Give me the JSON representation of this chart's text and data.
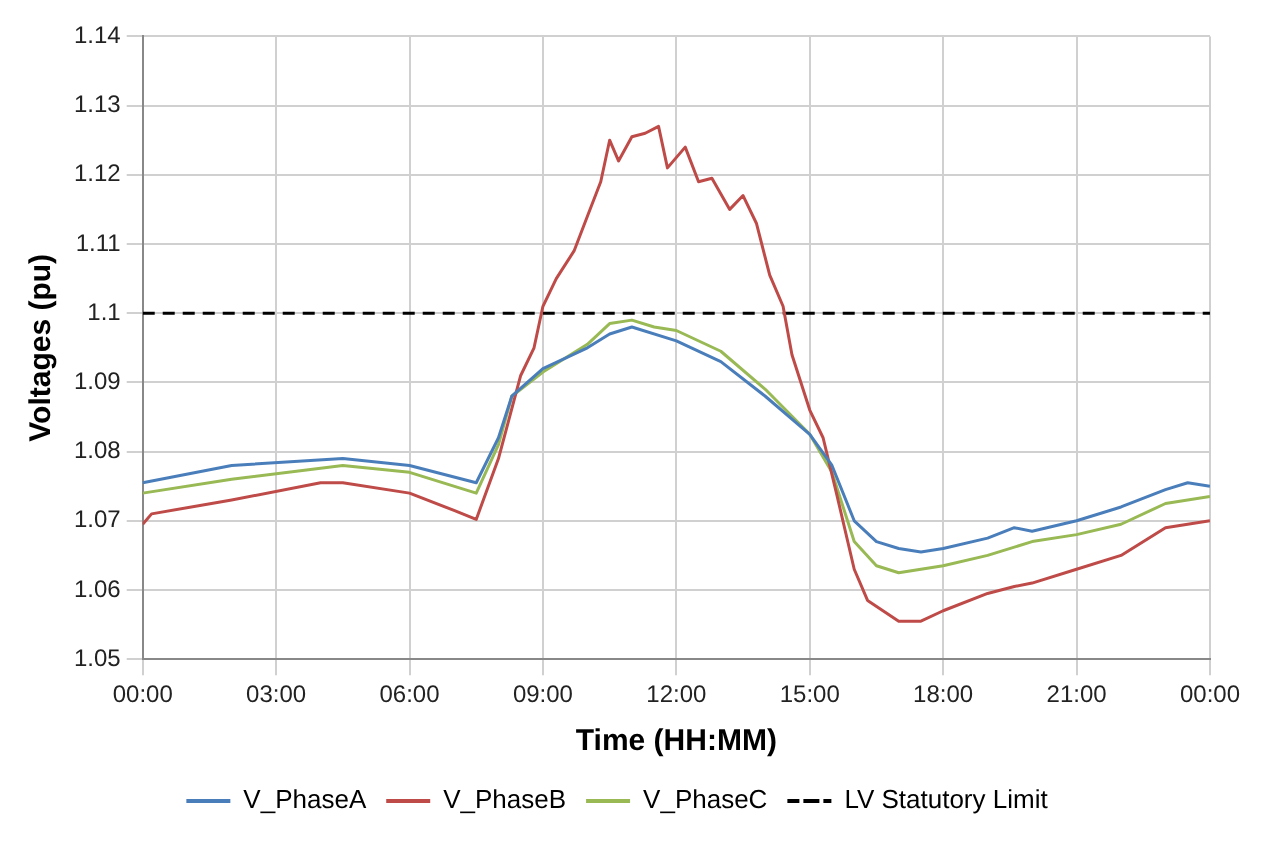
{
  "chart_data": {
    "type": "line",
    "xlabel": "Time (HH:MM)",
    "ylabel": "Voltages (pu)",
    "xlim": [
      0,
      24
    ],
    "xticks": [
      {
        "value": 0,
        "label": "00:00"
      },
      {
        "value": 3,
        "label": "03:00"
      },
      {
        "value": 6,
        "label": "06:00"
      },
      {
        "value": 9,
        "label": "09:00"
      },
      {
        "value": 12,
        "label": "12:00"
      },
      {
        "value": 15,
        "label": "15:00"
      },
      {
        "value": 18,
        "label": "18:00"
      },
      {
        "value": 21,
        "label": "21:00"
      },
      {
        "value": 24,
        "label": "00:00"
      }
    ],
    "ylim": [
      1.05,
      1.14
    ],
    "yticks": [
      1.05,
      1.06,
      1.07,
      1.08,
      1.09,
      1.1,
      1.11,
      1.12,
      1.13,
      1.14
    ],
    "grid": true,
    "legend": "bottom",
    "marker": "none",
    "line_style": "solid",
    "series": [
      {
        "name": "V_PhaseA",
        "color": "#4a7ebb",
        "x": [
          0,
          2,
          4.5,
          6,
          7.5,
          8,
          8.3,
          9,
          10,
          10.5,
          11,
          12,
          13,
          14,
          15,
          15.5,
          16,
          16.5,
          17,
          17.5,
          18,
          19,
          19.6,
          20,
          21,
          22,
          23,
          23.5,
          24
        ],
        "values": [
          1.0755,
          1.078,
          1.079,
          1.078,
          1.0755,
          1.082,
          1.088,
          1.092,
          1.095,
          1.097,
          1.098,
          1.096,
          1.093,
          1.088,
          1.0825,
          1.078,
          1.07,
          1.067,
          1.066,
          1.0655,
          1.066,
          1.0675,
          1.069,
          1.0685,
          1.07,
          1.072,
          1.0745,
          1.0755,
          1.075
        ]
      },
      {
        "name": "V_PhaseB",
        "color": "#be4b48",
        "x": [
          0,
          0.2,
          2,
          4,
          4.5,
          6,
          7,
          7.5,
          8,
          8.5,
          8.8,
          9,
          9.3,
          9.7,
          10,
          10.3,
          10.5,
          10.7,
          11,
          11.3,
          11.6,
          11.8,
          12.2,
          12.5,
          12.8,
          13.2,
          13.5,
          13.8,
          14.1,
          14.4,
          14.6,
          15,
          15.3,
          15.6,
          16,
          16.3,
          17,
          17.5,
          18,
          19,
          19.6,
          20,
          21,
          22,
          23,
          24
        ],
        "values": [
          1.0695,
          1.071,
          1.073,
          1.0755,
          1.0755,
          1.074,
          1.0715,
          1.0702,
          1.079,
          1.091,
          1.095,
          1.101,
          1.105,
          1.109,
          1.114,
          1.119,
          1.125,
          1.122,
          1.1255,
          1.126,
          1.127,
          1.121,
          1.124,
          1.119,
          1.1195,
          1.115,
          1.117,
          1.113,
          1.1055,
          1.101,
          1.094,
          1.086,
          1.082,
          1.074,
          1.063,
          1.0585,
          1.0555,
          1.0555,
          1.057,
          1.0595,
          1.0605,
          1.061,
          1.063,
          1.065,
          1.069,
          1.07
        ]
      },
      {
        "name": "V_PhaseC",
        "color": "#98b954",
        "x": [
          0,
          2,
          4.5,
          6,
          7.5,
          8,
          8.3,
          9,
          10,
          10.5,
          11,
          11.5,
          12,
          13,
          14,
          15,
          15.5,
          16,
          16.5,
          17,
          18,
          19,
          20,
          21,
          22,
          23,
          24
        ],
        "values": [
          1.074,
          1.076,
          1.078,
          1.077,
          1.074,
          1.081,
          1.088,
          1.0915,
          1.0955,
          1.0985,
          1.099,
          1.098,
          1.0975,
          1.0945,
          1.089,
          1.0825,
          1.077,
          1.067,
          1.0635,
          1.0625,
          1.0635,
          1.065,
          1.067,
          1.068,
          1.0695,
          1.0725,
          1.0735
        ]
      }
    ],
    "ref_lines": [
      {
        "axis": "y",
        "value": 1.1,
        "label": "LV Statutory Limit",
        "color": "#000000",
        "line_style": "dashed"
      }
    ]
  }
}
